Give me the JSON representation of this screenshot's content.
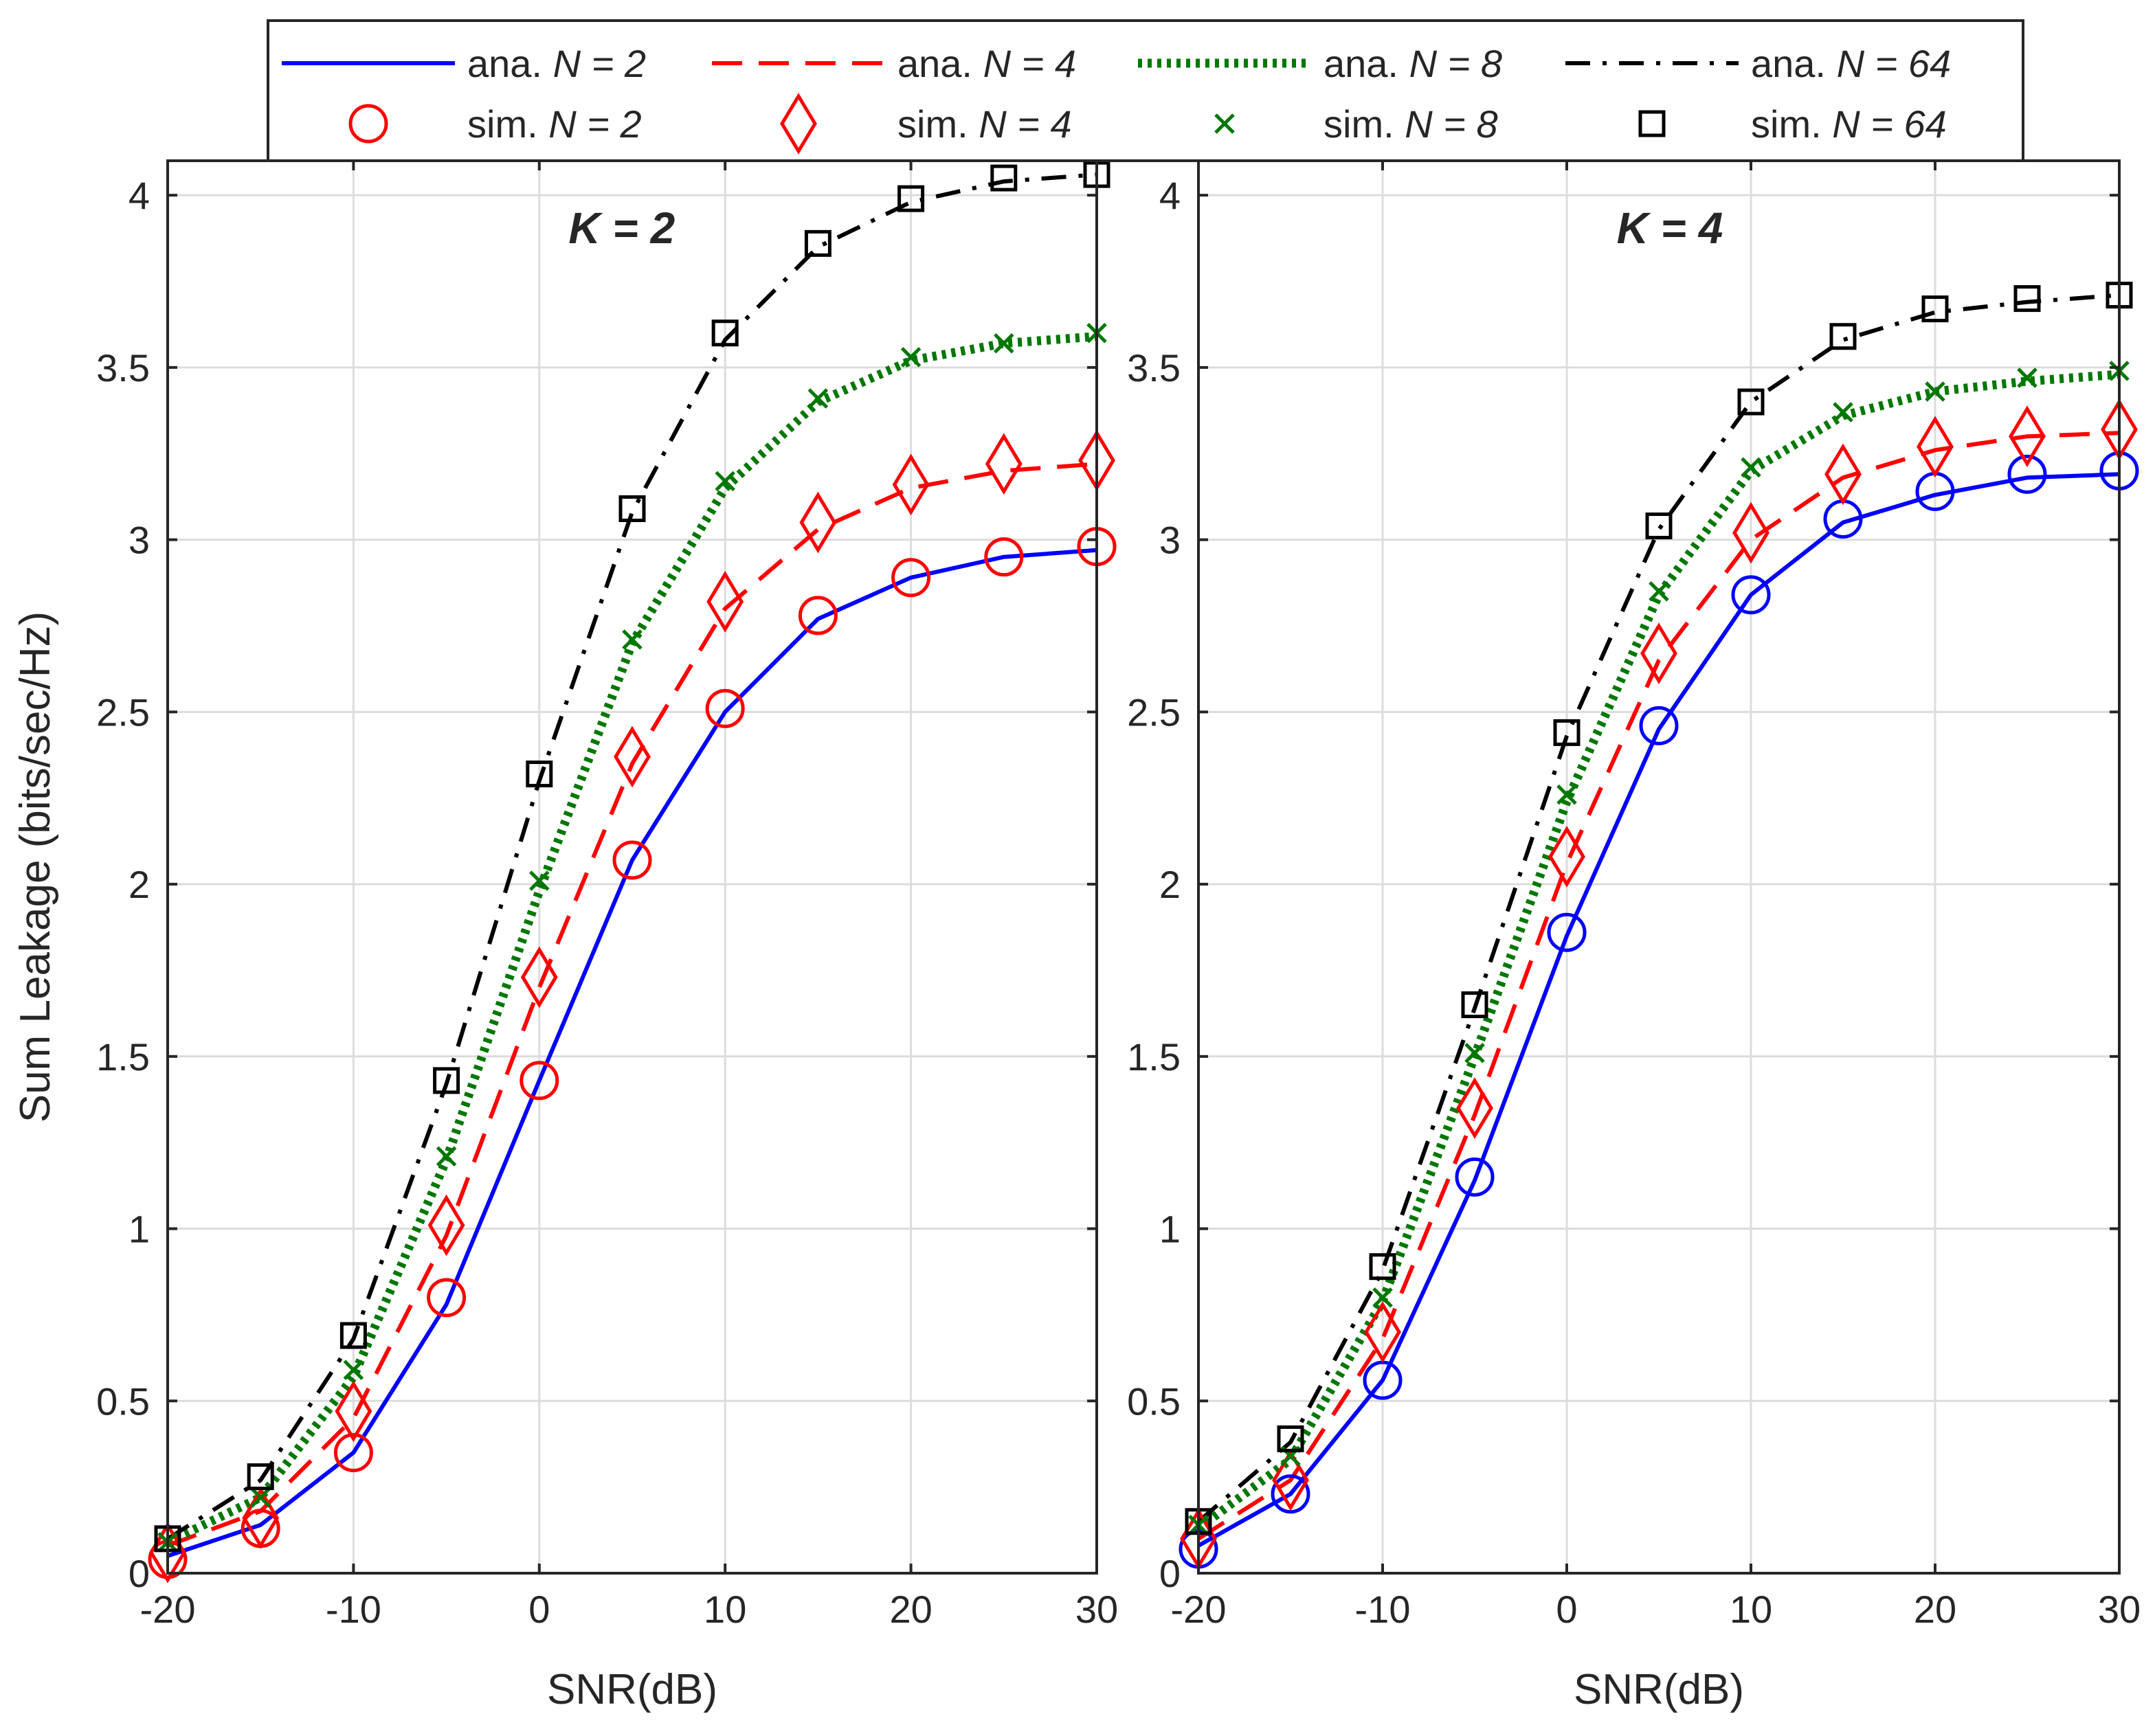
{
  "chart_data": [
    {
      "type": "line",
      "panel_title": "K = 2",
      "xlabel": "SNR(dB)",
      "ylabel": "Sum Leakage (bits/sec/Hz)",
      "xlim": [
        -20,
        30
      ],
      "ylim": [
        0,
        4.1
      ],
      "grid": true,
      "x": [
        -20,
        -15,
        -10,
        -5,
        0,
        5,
        10,
        15,
        20,
        25,
        30
      ],
      "xticks": [
        "-20",
        "-10",
        "0",
        "10",
        "20",
        "30"
      ],
      "yticks": [
        "0",
        "0.5",
        "1",
        "1.5",
        "2",
        "2.5",
        "3",
        "3.5",
        "4"
      ],
      "series": [
        {
          "name": "ana. N = 2",
          "values": [
            0.05,
            0.14,
            0.35,
            0.78,
            1.43,
            2.07,
            2.5,
            2.77,
            2.89,
            2.95,
            2.97
          ]
        },
        {
          "name": "sim. N = 2",
          "values": [
            0.04,
            0.13,
            0.35,
            0.8,
            1.43,
            2.07,
            2.51,
            2.78,
            2.89,
            2.95,
            2.98
          ]
        },
        {
          "name": "ana. N = 4",
          "values": [
            0.08,
            0.18,
            0.45,
            0.98,
            1.7,
            2.35,
            2.8,
            3.03,
            3.15,
            3.2,
            3.22
          ]
        },
        {
          "name": "sim. N = 4",
          "values": [
            0.06,
            0.16,
            0.47,
            1.01,
            1.73,
            2.37,
            2.82,
            3.05,
            3.16,
            3.22,
            3.23
          ]
        },
        {
          "name": "ana. N = 8",
          "values": [
            0.09,
            0.22,
            0.57,
            1.2,
            1.98,
            2.7,
            3.15,
            3.4,
            3.52,
            3.57,
            3.59
          ]
        },
        {
          "name": "sim. N = 8",
          "values": [
            0.09,
            0.22,
            0.59,
            1.21,
            2.01,
            2.71,
            3.17,
            3.41,
            3.53,
            3.57,
            3.6
          ]
        },
        {
          "name": "ana. N = 64",
          "values": [
            0.1,
            0.27,
            0.68,
            1.42,
            2.3,
            3.08,
            3.58,
            3.85,
            3.98,
            4.04,
            4.06
          ]
        },
        {
          "name": "sim. N = 64",
          "values": [
            0.1,
            0.28,
            0.69,
            1.43,
            2.32,
            3.09,
            3.6,
            3.86,
            3.99,
            4.05,
            4.06
          ]
        }
      ]
    },
    {
      "type": "line",
      "panel_title": "K = 4",
      "xlabel": "SNR(dB)",
      "ylabel": "",
      "xlim": [
        -20,
        30
      ],
      "ylim": [
        0,
        4.1
      ],
      "grid": true,
      "x": [
        -20,
        -15,
        -10,
        -5,
        0,
        5,
        10,
        15,
        20,
        25,
        30
      ],
      "xticks": [
        "-20",
        "-10",
        "0",
        "10",
        "20",
        "30"
      ],
      "yticks": [
        "0",
        "0.5",
        "1",
        "1.5",
        "2",
        "2.5",
        "3",
        "3.5",
        "4"
      ],
      "series": [
        {
          "name": "ana. N = 2",
          "values": [
            0.08,
            0.23,
            0.56,
            1.14,
            1.85,
            2.45,
            2.84,
            3.05,
            3.13,
            3.18,
            3.19
          ]
        },
        {
          "name": "sim. N = 2",
          "values": [
            0.07,
            0.23,
            0.56,
            1.15,
            1.86,
            2.46,
            2.84,
            3.06,
            3.14,
            3.19,
            3.2
          ]
        },
        {
          "name": "ana. N = 4",
          "values": [
            0.1,
            0.27,
            0.68,
            1.33,
            2.06,
            2.65,
            3.0,
            3.18,
            3.26,
            3.3,
            3.31
          ]
        },
        {
          "name": "sim. N = 4",
          "values": [
            0.1,
            0.27,
            0.7,
            1.35,
            2.08,
            2.67,
            3.02,
            3.19,
            3.27,
            3.3,
            3.32
          ]
        },
        {
          "name": "ana. N = 8",
          "values": [
            0.13,
            0.33,
            0.79,
            1.5,
            2.24,
            2.84,
            3.2,
            3.36,
            3.43,
            3.46,
            3.48
          ]
        },
        {
          "name": "sim. N = 8",
          "values": [
            0.14,
            0.34,
            0.8,
            1.51,
            2.26,
            2.85,
            3.21,
            3.37,
            3.43,
            3.47,
            3.49
          ]
        },
        {
          "name": "ana. N = 64",
          "values": [
            0.15,
            0.38,
            0.88,
            1.64,
            2.43,
            3.03,
            3.4,
            3.58,
            3.66,
            3.69,
            3.71
          ]
        },
        {
          "name": "sim. N = 64",
          "values": [
            0.15,
            0.39,
            0.89,
            1.65,
            2.44,
            3.04,
            3.4,
            3.59,
            3.67,
            3.7,
            3.71
          ]
        }
      ]
    }
  ],
  "legend": {
    "entries": [
      {
        "prefix": "ana.",
        "var": "N",
        "value": "2",
        "kind": "line",
        "style": "solid",
        "color": "#0000ff"
      },
      {
        "prefix": "ana.",
        "var": "N",
        "value": "4",
        "kind": "line",
        "style": "dashed",
        "color": "#ff0000"
      },
      {
        "prefix": "ana.",
        "var": "N",
        "value": "8",
        "kind": "line",
        "style": "dotted",
        "color": "#007700"
      },
      {
        "prefix": "ana.",
        "var": "N",
        "value": "64",
        "kind": "line",
        "style": "dashdot",
        "color": "#000000"
      },
      {
        "prefix": "sim.",
        "var": "N",
        "value": "2",
        "kind": "marker",
        "marker": "circle",
        "color": "#ff0000"
      },
      {
        "prefix": "sim.",
        "var": "N",
        "value": "4",
        "kind": "marker",
        "marker": "diamond",
        "color": "#ff0000"
      },
      {
        "prefix": "sim.",
        "var": "N",
        "value": "8",
        "kind": "marker",
        "marker": "x",
        "color": "#007700"
      },
      {
        "prefix": "sim.",
        "var": "N",
        "value": "64",
        "kind": "marker",
        "marker": "square",
        "color": "#000000"
      }
    ]
  },
  "colors": {
    "n2": "#0000ff",
    "n2_marker_k2": "#ff0000",
    "n2_marker_k4": "#0000ff",
    "n4": "#ff0000",
    "n8": "#007700",
    "n64": "#000000",
    "grid": "#dcdcdc",
    "axis": "#262626"
  }
}
